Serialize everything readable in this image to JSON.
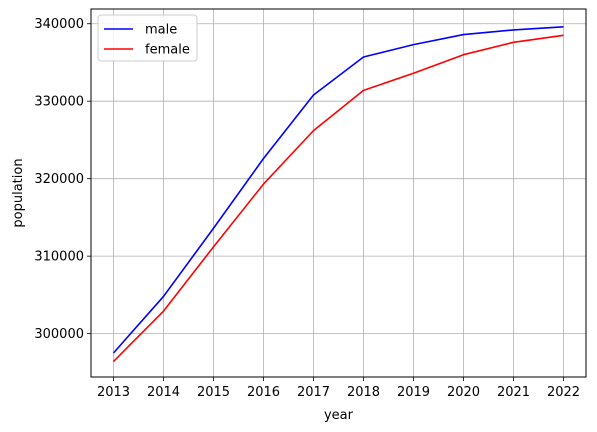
{
  "chart_data": {
    "type": "line",
    "title": "",
    "xlabel": "year",
    "ylabel": "population",
    "x": [
      2013,
      2014,
      2015,
      2016,
      2017,
      2018,
      2019,
      2020,
      2021,
      2022
    ],
    "x_tick_labels": [
      "2013",
      "2014",
      "2015",
      "2016",
      "2017",
      "2018",
      "2019",
      "2020",
      "2021",
      "2022"
    ],
    "y_ticks": [
      300000,
      310000,
      320000,
      330000,
      340000
    ],
    "y_tick_labels": [
      "300000",
      "310000",
      "320000",
      "330000",
      "340000"
    ],
    "xlim": [
      2012.55,
      2022.45
    ],
    "ylim": [
      294400,
      341900
    ],
    "grid": true,
    "legend_position": "upper-left",
    "series": [
      {
        "name": "male",
        "color": "#0000ff",
        "values": [
          297500,
          304800,
          313600,
          322600,
          330800,
          335700,
          337300,
          338600,
          339200,
          339600
        ]
      },
      {
        "name": "female",
        "color": "#ff0000",
        "values": [
          296400,
          302900,
          311200,
          319300,
          326200,
          331400,
          333600,
          336000,
          337600,
          338500
        ]
      }
    ]
  }
}
